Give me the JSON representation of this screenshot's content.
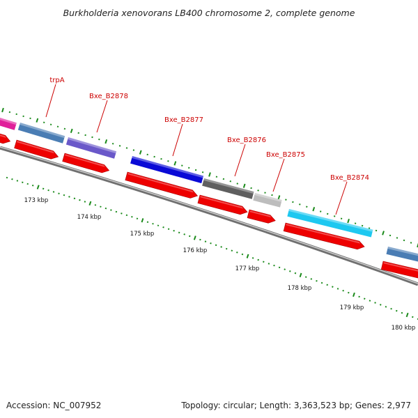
{
  "title": "Burkholderia xenovorans LB400 chromosome 2, complete genome",
  "footer": {
    "accession": "Accession: NC_007952",
    "summary": "Topology: circular; Length: 3,363,523 bp; Genes: 2,977"
  },
  "genes": [
    {
      "label": "trpA",
      "color": "#4a7db4"
    },
    {
      "label": "Bxe_B2878",
      "color": "#6a58c9"
    },
    {
      "label": "Bxe_B2877",
      "color": "#0a0ad6"
    },
    {
      "label": "Bxe_B2876",
      "color": "#5f5f5f"
    },
    {
      "label": "Bxe_B2875",
      "color": "#bdbdbd"
    },
    {
      "label": "Bxe_B2874",
      "color": "#1ec8f0"
    }
  ],
  "scale": [
    {
      "label": "173 kbp"
    },
    {
      "label": "174 kbp"
    },
    {
      "label": "175 kbp"
    },
    {
      "label": "176 kbp"
    },
    {
      "label": "177 kbp"
    },
    {
      "label": "178 kbp"
    },
    {
      "label": "179 kbp"
    },
    {
      "label": "180 kbp"
    }
  ],
  "colors": {
    "label": "#cc0000",
    "cds": "#ee0000",
    "tick": "#1a8a1a",
    "backbone": "#8a8a8a",
    "magenta": "#e0209a"
  }
}
